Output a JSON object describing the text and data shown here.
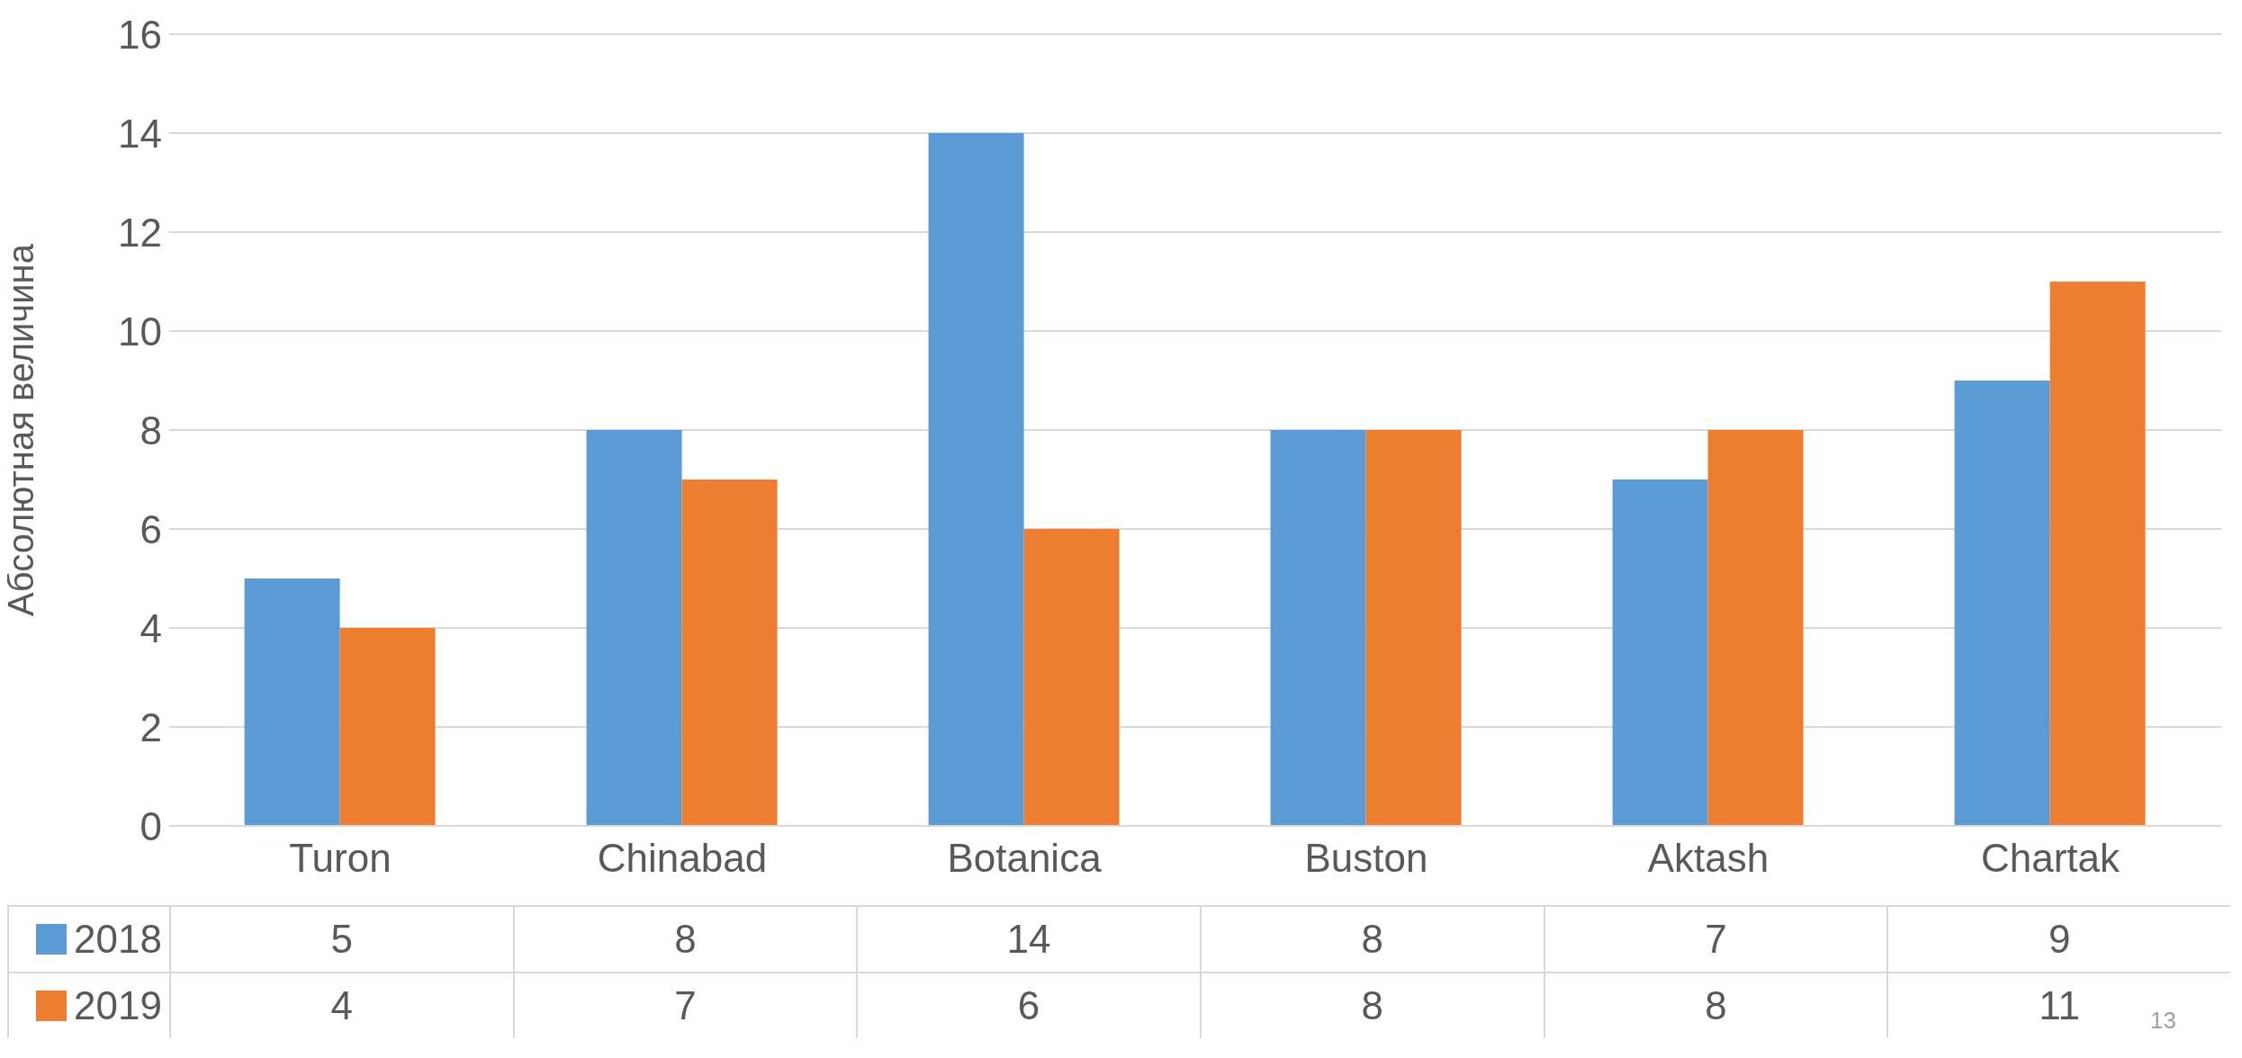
{
  "chart_data": {
    "type": "bar",
    "ylabel": "Абсолютная величина",
    "categories": [
      "Turon",
      "Chinabad",
      "Botanica",
      "Buston",
      "Aktash",
      "Chartak"
    ],
    "series": [
      {
        "name": "2018",
        "color": "#5b9bd5",
        "values": [
          5,
          8,
          14,
          8,
          7,
          9
        ]
      },
      {
        "name": "2019",
        "color": "#ed7d31",
        "values": [
          4,
          7,
          6,
          8,
          8,
          11
        ]
      }
    ],
    "ylim": [
      0,
      16
    ],
    "yticks": [
      0,
      2,
      4,
      6,
      8,
      10,
      12,
      14,
      16
    ],
    "grid": "y",
    "data_labels": true,
    "legend": "bottom",
    "annotations": [
      "13"
    ]
  }
}
